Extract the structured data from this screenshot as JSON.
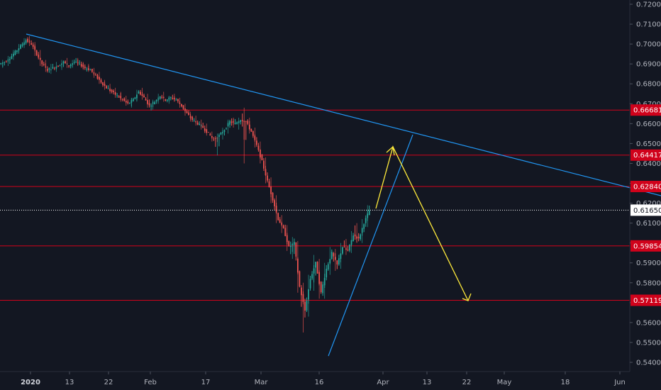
{
  "chart_data": {
    "type": "candlestick",
    "pair_scale": {
      "ylim": [
        0.535,
        0.72
      ],
      "y_ticks": [
        "0.72000",
        "0.71000",
        "0.70000",
        "0.69000",
        "0.68000",
        "0.67000",
        "0.66000",
        "0.65000",
        "0.64000",
        "0.63000",
        "0.62000",
        "0.61000",
        "0.60000",
        "0.59000",
        "0.58000",
        "0.57000",
        "0.56000",
        "0.55000",
        "0.54000"
      ],
      "x_ticks": [
        {
          "label": "2020",
          "bold": true
        },
        {
          "label": "13"
        },
        {
          "label": "22"
        },
        {
          "label": "Feb"
        },
        {
          "label": "17"
        },
        {
          "label": "Mar"
        },
        {
          "label": "16"
        },
        {
          "label": "Apr"
        },
        {
          "label": "13"
        },
        {
          "label": "22"
        },
        {
          "label": "May"
        },
        {
          "label": "18"
        },
        {
          "label": "Jun"
        }
      ]
    },
    "horizontal_levels": [
      {
        "value": 0.66681,
        "label": "0.66681",
        "color": "#d0021b"
      },
      {
        "value": 0.64417,
        "label": "0.64417",
        "color": "#d0021b"
      },
      {
        "value": 0.6284,
        "label": "0.62840",
        "color": "#d0021b"
      },
      {
        "value": 0.59854,
        "label": "0.59854",
        "color": "#d0021b"
      },
      {
        "value": 0.57119,
        "label": "0.57119",
        "color": "#d0021b"
      }
    ],
    "last_price": {
      "value": 0.6165,
      "label": "0.61650"
    },
    "colors": {
      "up": "#26a69a",
      "down": "#ef5350",
      "level": "#d0021b",
      "trendline": "#2196f3",
      "projection": "#ffeb3b",
      "background": "#131722"
    },
    "price_path": [
      [
        0.69,
        0.692,
        0.688,
        0.691
      ],
      [
        0.691,
        0.694,
        0.689,
        0.693
      ],
      [
        0.693,
        0.697,
        0.692,
        0.696
      ],
      [
        0.696,
        0.7,
        0.695,
        0.699
      ],
      [
        0.699,
        0.703,
        0.698,
        0.702
      ],
      [
        0.702,
        0.704,
        0.699,
        0.7
      ],
      [
        0.7,
        0.701,
        0.694,
        0.695
      ],
      [
        0.695,
        0.697,
        0.689,
        0.69
      ],
      [
        0.69,
        0.692,
        0.686,
        0.687
      ],
      [
        0.687,
        0.69,
        0.685,
        0.688
      ],
      [
        0.688,
        0.691,
        0.686,
        0.689
      ],
      [
        0.689,
        0.692,
        0.687,
        0.691
      ],
      [
        0.691,
        0.693,
        0.688,
        0.689
      ],
      [
        0.689,
        0.692,
        0.688,
        0.691
      ],
      [
        0.691,
        0.693,
        0.689,
        0.69
      ],
      [
        0.69,
        0.691,
        0.687,
        0.688
      ],
      [
        0.688,
        0.69,
        0.686,
        0.687
      ],
      [
        0.687,
        0.688,
        0.683,
        0.684
      ],
      [
        0.684,
        0.686,
        0.68,
        0.681
      ],
      [
        0.681,
        0.682,
        0.677,
        0.678
      ],
      [
        0.678,
        0.68,
        0.675,
        0.676
      ],
      [
        0.676,
        0.678,
        0.673,
        0.674
      ],
      [
        0.674,
        0.676,
        0.671,
        0.672
      ],
      [
        0.672,
        0.674,
        0.669,
        0.67
      ],
      [
        0.67,
        0.673,
        0.668,
        0.672
      ],
      [
        0.672,
        0.677,
        0.671,
        0.676
      ],
      [
        0.676,
        0.678,
        0.672,
        0.673
      ],
      [
        0.673,
        0.675,
        0.668,
        0.669
      ],
      [
        0.669,
        0.672,
        0.667,
        0.671
      ],
      [
        0.671,
        0.675,
        0.67,
        0.674
      ],
      [
        0.674,
        0.676,
        0.671,
        0.672
      ],
      [
        0.672,
        0.674,
        0.67,
        0.673
      ],
      [
        0.673,
        0.675,
        0.671,
        0.672
      ],
      [
        0.672,
        0.673,
        0.668,
        0.669
      ],
      [
        0.669,
        0.67,
        0.664,
        0.665
      ],
      [
        0.665,
        0.666,
        0.661,
        0.662
      ],
      [
        0.662,
        0.664,
        0.659,
        0.66
      ],
      [
        0.66,
        0.662,
        0.657,
        0.658
      ],
      [
        0.658,
        0.66,
        0.654,
        0.655
      ],
      [
        0.655,
        0.656,
        0.651,
        0.652
      ],
      [
        0.652,
        0.655,
        0.644,
        0.654
      ],
      [
        0.654,
        0.658,
        0.652,
        0.657
      ],
      [
        0.657,
        0.662,
        0.655,
        0.661
      ],
      [
        0.661,
        0.663,
        0.658,
        0.66
      ],
      [
        0.66,
        0.663,
        0.657,
        0.662
      ],
      [
        0.662,
        0.668,
        0.64,
        0.661
      ],
      [
        0.661,
        0.663,
        0.655,
        0.656
      ],
      [
        0.656,
        0.658,
        0.648,
        0.649
      ],
      [
        0.649,
        0.651,
        0.64,
        0.641
      ],
      [
        0.641,
        0.643,
        0.63,
        0.631
      ],
      [
        0.631,
        0.633,
        0.62,
        0.622
      ],
      [
        0.622,
        0.624,
        0.61,
        0.612
      ],
      [
        0.612,
        0.614,
        0.605,
        0.607
      ],
      [
        0.607,
        0.609,
        0.596,
        0.598
      ],
      [
        0.598,
        0.603,
        0.592,
        0.6
      ],
      [
        0.6,
        0.601,
        0.575,
        0.578
      ],
      [
        0.578,
        0.58,
        0.555,
        0.566
      ],
      [
        0.566,
        0.584,
        0.563,
        0.582
      ],
      [
        0.582,
        0.594,
        0.576,
        0.59
      ],
      [
        0.59,
        0.592,
        0.572,
        0.575
      ],
      [
        0.575,
        0.59,
        0.572,
        0.587
      ],
      [
        0.587,
        0.598,
        0.584,
        0.595
      ],
      [
        0.595,
        0.597,
        0.586,
        0.589
      ],
      [
        0.589,
        0.6,
        0.587,
        0.598
      ],
      [
        0.598,
        0.602,
        0.594,
        0.596
      ],
      [
        0.596,
        0.606,
        0.595,
        0.604
      ],
      [
        0.604,
        0.61,
        0.6,
        0.602
      ],
      [
        0.602,
        0.612,
        0.6,
        0.61
      ],
      [
        0.61,
        0.619,
        0.608,
        0.6165
      ]
    ]
  }
}
